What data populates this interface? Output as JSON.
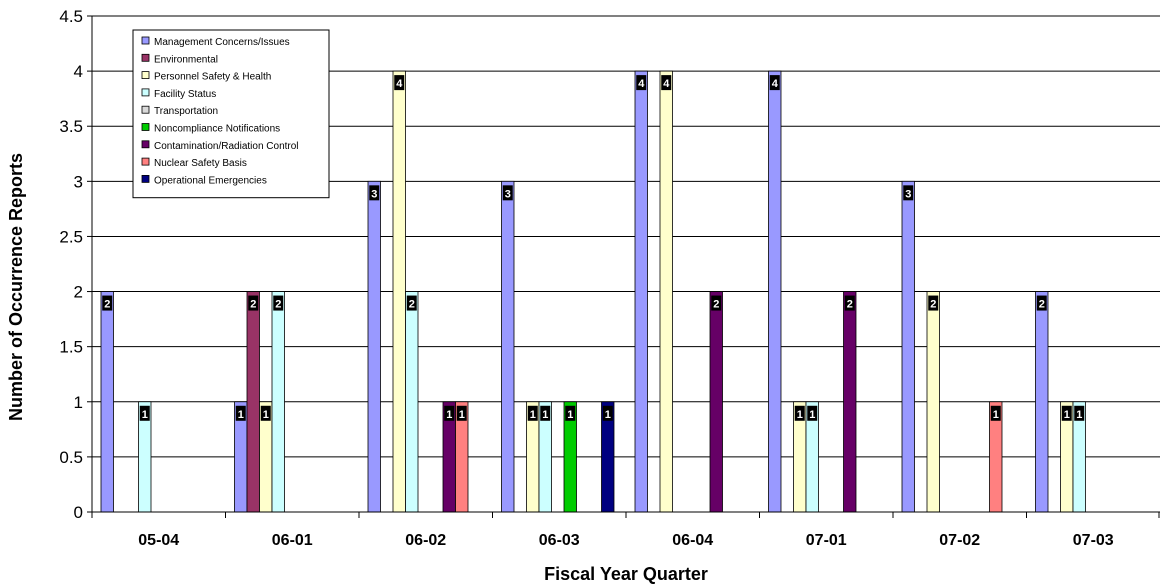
{
  "chart_data": {
    "type": "bar",
    "xlabel": "Fiscal Year Quarter",
    "ylabel": "Number of Occurrence Reports",
    "ylim": [
      0,
      4.5
    ],
    "yticks": [
      "0",
      "0.5",
      "1",
      "1.5",
      "2",
      "2.5",
      "3",
      "3.5",
      "4",
      "4.5"
    ],
    "grid": true,
    "legend_position": "top-left inside",
    "categories": [
      "05-04",
      "06-01",
      "06-02",
      "06-03",
      "06-04",
      "07-01",
      "07-02",
      "07-03"
    ],
    "series": [
      {
        "name": "Management Concerns/Issues",
        "color": "#9999ff",
        "values": [
          2,
          1,
          3,
          3,
          4,
          4,
          3,
          2
        ]
      },
      {
        "name": "Environmental",
        "color": "#993366",
        "values": [
          0,
          2,
          0,
          0,
          0,
          0,
          0,
          0
        ]
      },
      {
        "name": "Personnel Safety & Health",
        "color": "#ffffcc",
        "values": [
          0,
          1,
          4,
          1,
          4,
          1,
          2,
          1
        ]
      },
      {
        "name": "Facility Status",
        "color": "#ccffff",
        "values": [
          1,
          2,
          2,
          1,
          0,
          1,
          0,
          1
        ]
      },
      {
        "name": "Transportation",
        "color": "#d9d9d9",
        "values": [
          0,
          0,
          0,
          0,
          0,
          0,
          0,
          0
        ]
      },
      {
        "name": "Noncompliance Notifications",
        "color": "#00cc00",
        "values": [
          0,
          0,
          0,
          1,
          0,
          0,
          0,
          0
        ]
      },
      {
        "name": "Contamination/Radiation Control",
        "color": "#660066",
        "values": [
          0,
          0,
          1,
          0,
          2,
          2,
          0,
          0
        ]
      },
      {
        "name": "Nuclear Safety Basis",
        "color": "#ff8080",
        "values": [
          0,
          0,
          1,
          0,
          0,
          0,
          1,
          0
        ]
      },
      {
        "name": "Operational Emergencies",
        "color": "#000080",
        "values": [
          0,
          0,
          0,
          1,
          0,
          0,
          0,
          0
        ]
      }
    ]
  }
}
